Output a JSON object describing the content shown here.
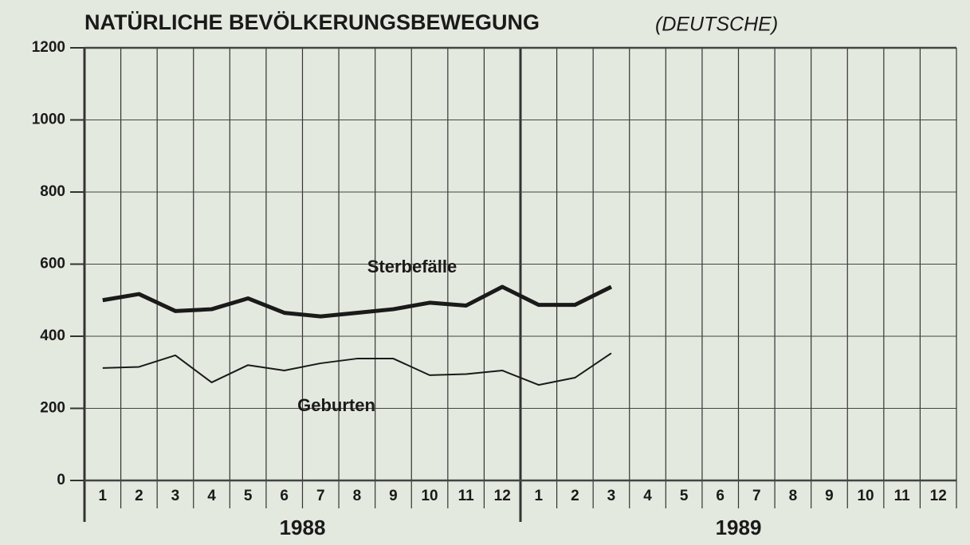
{
  "chart_data": {
    "type": "line",
    "title": "NATÜRLICHE BEVÖLKERUNGSBEWEGUNG",
    "subtitle": "(DEUTSCHE)",
    "categories": [
      "1",
      "2",
      "3",
      "4",
      "5",
      "6",
      "7",
      "8",
      "9",
      "10",
      "11",
      "12",
      "1",
      "2",
      "3",
      "4",
      "5",
      "6",
      "7",
      "8",
      "9",
      "10",
      "11",
      "12"
    ],
    "year_labels": [
      "1988",
      "1989"
    ],
    "series": [
      {
        "name": "Sterbefälle",
        "color": "#1a1a1a",
        "values": [
          500,
          517,
          470,
          475,
          505,
          465,
          455,
          465,
          475,
          493,
          485,
          537,
          487,
          487,
          537,
          null,
          null,
          null,
          null,
          null,
          null,
          null,
          null,
          null
        ]
      },
      {
        "name": "Geburten",
        "color": "#1a1a1a",
        "values": [
          312,
          315,
          347,
          272,
          320,
          305,
          325,
          338,
          338,
          292,
          295,
          305,
          265,
          285,
          353,
          null,
          null,
          null,
          null,
          null,
          null,
          null,
          null,
          null
        ]
      }
    ],
    "ylim": [
      0,
      1200
    ],
    "yticks": [
      0,
      200,
      400,
      600,
      800,
      1000,
      1200
    ],
    "grid": true
  }
}
